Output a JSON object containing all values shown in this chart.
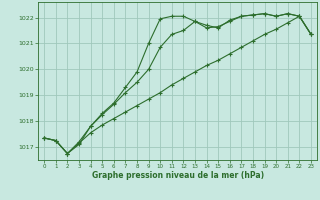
{
  "xlabel": "Graphe pression niveau de la mer (hPa)",
  "background_color": "#c8e8e0",
  "grid_color": "#a0c8bc",
  "line_color": "#2d6e2d",
  "xlim": [
    -0.5,
    23.5
  ],
  "ylim": [
    1016.5,
    1022.6
  ],
  "yticks": [
    1017,
    1018,
    1019,
    1020,
    1021,
    1022
  ],
  "xticks": [
    0,
    1,
    2,
    3,
    4,
    5,
    6,
    7,
    8,
    9,
    10,
    11,
    12,
    13,
    14,
    15,
    16,
    17,
    18,
    19,
    20,
    21,
    22,
    23
  ],
  "line1_x": [
    0,
    1,
    2,
    3,
    4,
    5,
    6,
    7,
    8,
    9,
    10,
    11,
    12,
    13,
    14,
    15,
    16,
    17,
    18,
    19,
    20,
    21,
    22,
    23
  ],
  "line1_y": [
    1017.35,
    1017.25,
    1016.75,
    1017.2,
    1017.8,
    1018.25,
    1018.65,
    1019.1,
    1019.5,
    1020.0,
    1020.85,
    1021.35,
    1021.5,
    1021.85,
    1021.7,
    1021.6,
    1021.9,
    1022.05,
    1022.1,
    1022.15,
    1022.05,
    1022.15,
    1022.05,
    1021.35
  ],
  "line2_x": [
    0,
    1,
    2,
    3,
    4,
    5,
    6,
    7,
    8,
    9,
    10,
    11,
    12,
    13,
    14,
    15,
    16,
    17,
    18,
    19,
    20,
    21,
    22,
    23
  ],
  "line2_y": [
    1017.35,
    1017.25,
    1016.75,
    1017.1,
    1017.8,
    1018.3,
    1018.7,
    1019.3,
    1019.9,
    1021.0,
    1021.95,
    1022.05,
    1022.05,
    1021.85,
    1021.6,
    1021.65,
    1021.85,
    1022.05,
    1022.1,
    1022.15,
    1022.05,
    1022.15,
    1022.05,
    1021.35
  ],
  "line3_x": [
    0,
    1,
    2,
    3,
    4,
    5,
    6,
    7,
    8,
    9,
    10,
    11,
    12,
    13,
    14,
    15,
    16,
    17,
    18,
    19,
    20,
    21,
    22,
    23
  ],
  "line3_y": [
    1017.35,
    1017.25,
    1016.75,
    1017.15,
    1017.55,
    1017.85,
    1018.1,
    1018.35,
    1018.6,
    1018.85,
    1019.1,
    1019.4,
    1019.65,
    1019.9,
    1020.15,
    1020.35,
    1020.6,
    1020.85,
    1021.1,
    1021.35,
    1021.55,
    1021.8,
    1022.05,
    1021.35
  ]
}
